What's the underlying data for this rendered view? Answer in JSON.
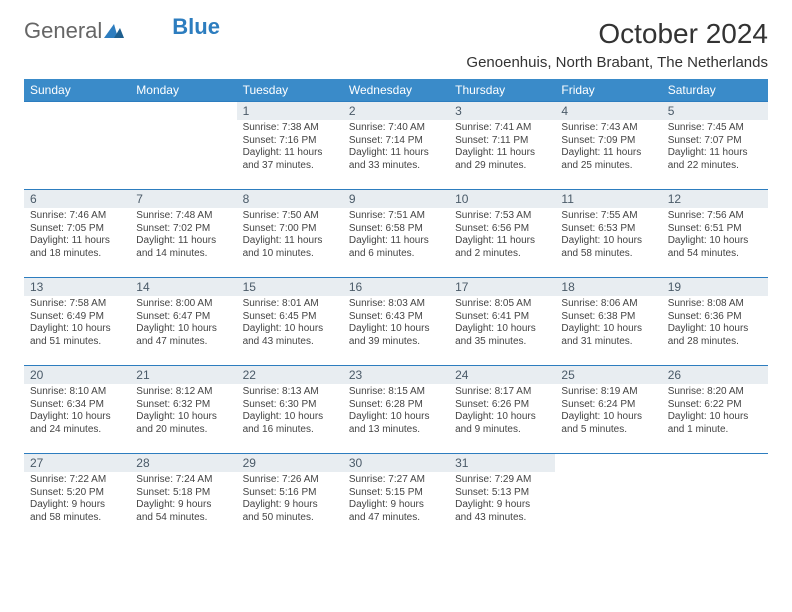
{
  "logo": {
    "text_general": "General",
    "text_blue": "Blue"
  },
  "title": "October 2024",
  "location": "Genoenhuis, North Brabant, The Netherlands",
  "colors": {
    "header_bg": "#3a8bc9",
    "header_text": "#ffffff",
    "daynum_bg": "#e8edf1",
    "daynum_text": "#4a5a68",
    "border": "#2d7dbf",
    "body_text": "#444444",
    "page_bg": "#ffffff"
  },
  "fonts": {
    "title_size_pt": 21,
    "location_size_pt": 11,
    "header_size_pt": 9,
    "body_size_pt": 7.5
  },
  "day_headers": [
    "Sunday",
    "Monday",
    "Tuesday",
    "Wednesday",
    "Thursday",
    "Friday",
    "Saturday"
  ],
  "weeks": [
    [
      {
        "empty": true
      },
      {
        "empty": true
      },
      {
        "n": "1",
        "sunrise": "Sunrise: 7:38 AM",
        "sunset": "Sunset: 7:16 PM",
        "daylight": "Daylight: 11 hours and 37 minutes."
      },
      {
        "n": "2",
        "sunrise": "Sunrise: 7:40 AM",
        "sunset": "Sunset: 7:14 PM",
        "daylight": "Daylight: 11 hours and 33 minutes."
      },
      {
        "n": "3",
        "sunrise": "Sunrise: 7:41 AM",
        "sunset": "Sunset: 7:11 PM",
        "daylight": "Daylight: 11 hours and 29 minutes."
      },
      {
        "n": "4",
        "sunrise": "Sunrise: 7:43 AM",
        "sunset": "Sunset: 7:09 PM",
        "daylight": "Daylight: 11 hours and 25 minutes."
      },
      {
        "n": "5",
        "sunrise": "Sunrise: 7:45 AM",
        "sunset": "Sunset: 7:07 PM",
        "daylight": "Daylight: 11 hours and 22 minutes."
      }
    ],
    [
      {
        "n": "6",
        "sunrise": "Sunrise: 7:46 AM",
        "sunset": "Sunset: 7:05 PM",
        "daylight": "Daylight: 11 hours and 18 minutes."
      },
      {
        "n": "7",
        "sunrise": "Sunrise: 7:48 AM",
        "sunset": "Sunset: 7:02 PM",
        "daylight": "Daylight: 11 hours and 14 minutes."
      },
      {
        "n": "8",
        "sunrise": "Sunrise: 7:50 AM",
        "sunset": "Sunset: 7:00 PM",
        "daylight": "Daylight: 11 hours and 10 minutes."
      },
      {
        "n": "9",
        "sunrise": "Sunrise: 7:51 AM",
        "sunset": "Sunset: 6:58 PM",
        "daylight": "Daylight: 11 hours and 6 minutes."
      },
      {
        "n": "10",
        "sunrise": "Sunrise: 7:53 AM",
        "sunset": "Sunset: 6:56 PM",
        "daylight": "Daylight: 11 hours and 2 minutes."
      },
      {
        "n": "11",
        "sunrise": "Sunrise: 7:55 AM",
        "sunset": "Sunset: 6:53 PM",
        "daylight": "Daylight: 10 hours and 58 minutes."
      },
      {
        "n": "12",
        "sunrise": "Sunrise: 7:56 AM",
        "sunset": "Sunset: 6:51 PM",
        "daylight": "Daylight: 10 hours and 54 minutes."
      }
    ],
    [
      {
        "n": "13",
        "sunrise": "Sunrise: 7:58 AM",
        "sunset": "Sunset: 6:49 PM",
        "daylight": "Daylight: 10 hours and 51 minutes."
      },
      {
        "n": "14",
        "sunrise": "Sunrise: 8:00 AM",
        "sunset": "Sunset: 6:47 PM",
        "daylight": "Daylight: 10 hours and 47 minutes."
      },
      {
        "n": "15",
        "sunrise": "Sunrise: 8:01 AM",
        "sunset": "Sunset: 6:45 PM",
        "daylight": "Daylight: 10 hours and 43 minutes."
      },
      {
        "n": "16",
        "sunrise": "Sunrise: 8:03 AM",
        "sunset": "Sunset: 6:43 PM",
        "daylight": "Daylight: 10 hours and 39 minutes."
      },
      {
        "n": "17",
        "sunrise": "Sunrise: 8:05 AM",
        "sunset": "Sunset: 6:41 PM",
        "daylight": "Daylight: 10 hours and 35 minutes."
      },
      {
        "n": "18",
        "sunrise": "Sunrise: 8:06 AM",
        "sunset": "Sunset: 6:38 PM",
        "daylight": "Daylight: 10 hours and 31 minutes."
      },
      {
        "n": "19",
        "sunrise": "Sunrise: 8:08 AM",
        "sunset": "Sunset: 6:36 PM",
        "daylight": "Daylight: 10 hours and 28 minutes."
      }
    ],
    [
      {
        "n": "20",
        "sunrise": "Sunrise: 8:10 AM",
        "sunset": "Sunset: 6:34 PM",
        "daylight": "Daylight: 10 hours and 24 minutes."
      },
      {
        "n": "21",
        "sunrise": "Sunrise: 8:12 AM",
        "sunset": "Sunset: 6:32 PM",
        "daylight": "Daylight: 10 hours and 20 minutes."
      },
      {
        "n": "22",
        "sunrise": "Sunrise: 8:13 AM",
        "sunset": "Sunset: 6:30 PM",
        "daylight": "Daylight: 10 hours and 16 minutes."
      },
      {
        "n": "23",
        "sunrise": "Sunrise: 8:15 AM",
        "sunset": "Sunset: 6:28 PM",
        "daylight": "Daylight: 10 hours and 13 minutes."
      },
      {
        "n": "24",
        "sunrise": "Sunrise: 8:17 AM",
        "sunset": "Sunset: 6:26 PM",
        "daylight": "Daylight: 10 hours and 9 minutes."
      },
      {
        "n": "25",
        "sunrise": "Sunrise: 8:19 AM",
        "sunset": "Sunset: 6:24 PM",
        "daylight": "Daylight: 10 hours and 5 minutes."
      },
      {
        "n": "26",
        "sunrise": "Sunrise: 8:20 AM",
        "sunset": "Sunset: 6:22 PM",
        "daylight": "Daylight: 10 hours and 1 minute."
      }
    ],
    [
      {
        "n": "27",
        "sunrise": "Sunrise: 7:22 AM",
        "sunset": "Sunset: 5:20 PM",
        "daylight": "Daylight: 9 hours and 58 minutes."
      },
      {
        "n": "28",
        "sunrise": "Sunrise: 7:24 AM",
        "sunset": "Sunset: 5:18 PM",
        "daylight": "Daylight: 9 hours and 54 minutes."
      },
      {
        "n": "29",
        "sunrise": "Sunrise: 7:26 AM",
        "sunset": "Sunset: 5:16 PM",
        "daylight": "Daylight: 9 hours and 50 minutes."
      },
      {
        "n": "30",
        "sunrise": "Sunrise: 7:27 AM",
        "sunset": "Sunset: 5:15 PM",
        "daylight": "Daylight: 9 hours and 47 minutes."
      },
      {
        "n": "31",
        "sunrise": "Sunrise: 7:29 AM",
        "sunset": "Sunset: 5:13 PM",
        "daylight": "Daylight: 9 hours and 43 minutes."
      },
      {
        "empty": true
      },
      {
        "empty": true
      }
    ]
  ]
}
